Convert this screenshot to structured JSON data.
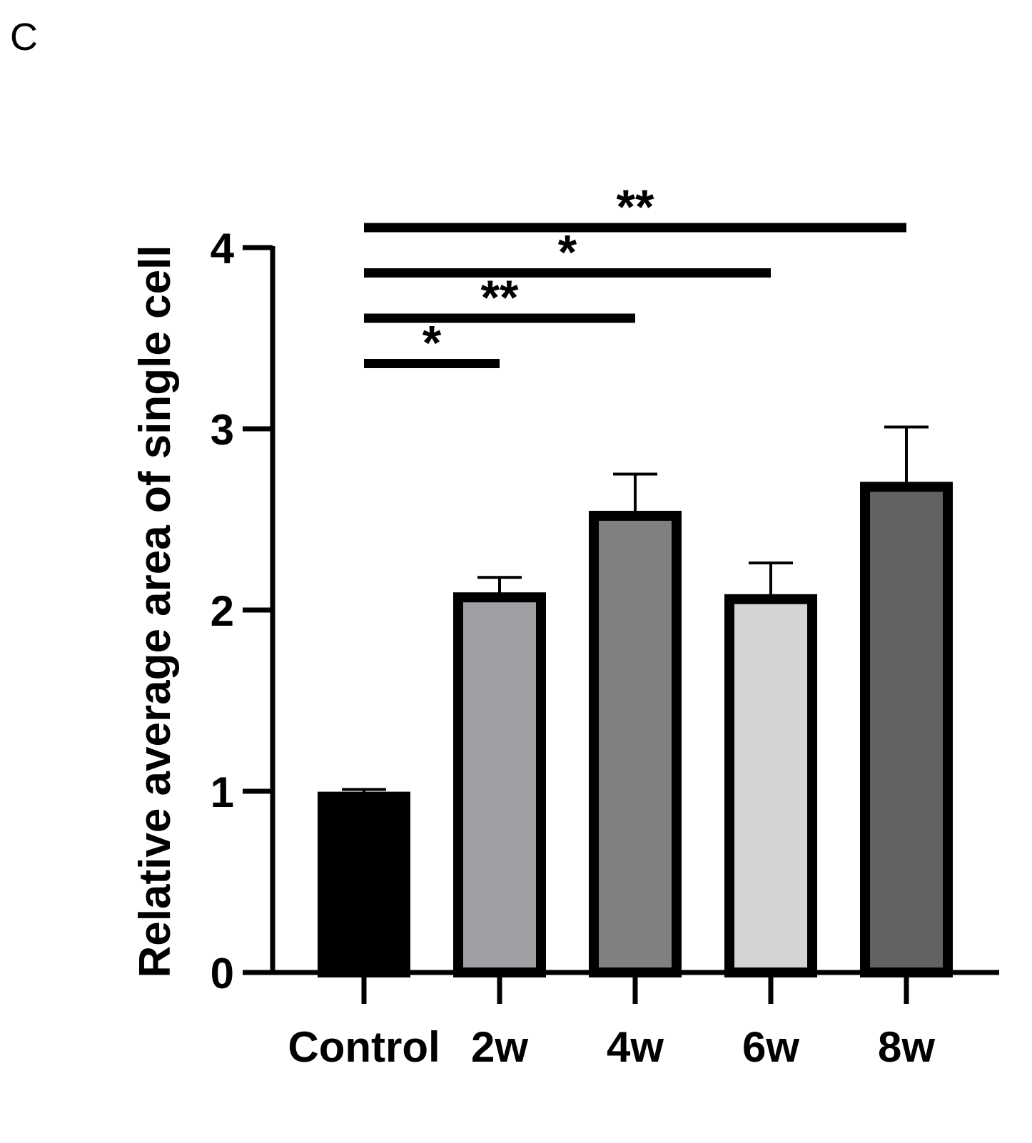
{
  "panel_label": "C",
  "chart_data": {
    "type": "bar",
    "title": "",
    "xlabel": "",
    "ylabel": "Relative average area of  single cell",
    "categories": [
      "Control",
      "2w",
      "4w",
      "6w",
      "8w"
    ],
    "values": [
      0.97,
      2.07,
      2.52,
      2.06,
      2.68
    ],
    "error_upper": [
      1.01,
      2.18,
      2.75,
      2.26,
      3.01
    ],
    "colors": [
      "#000000",
      "#a0a0a4",
      "#808080",
      "#d4d4d4",
      "#626262"
    ],
    "ylim": [
      0,
      4
    ],
    "yticks": [
      "0",
      "1",
      "2",
      "3",
      "4"
    ],
    "grid": false,
    "legend": "none",
    "significance": [
      {
        "from": "Control",
        "to": "2w",
        "label": "*",
        "y": 3.36
      },
      {
        "from": "Control",
        "to": "4w",
        "label": "**",
        "y": 3.61
      },
      {
        "from": "Control",
        "to": "6w",
        "label": "*",
        "y": 3.86
      },
      {
        "from": "Control",
        "to": "8w",
        "label": "**",
        "y": 4.11
      }
    ]
  }
}
